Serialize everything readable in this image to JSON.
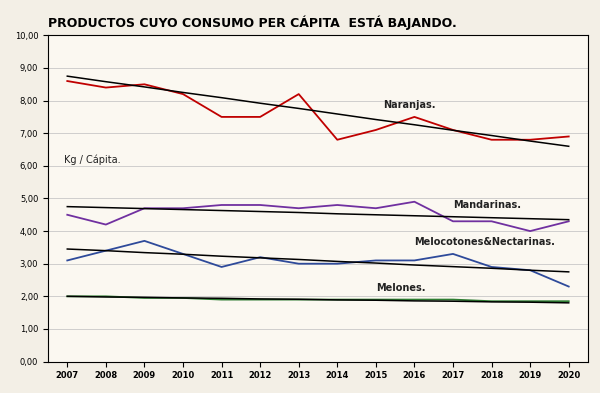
{
  "chart_data": {
    "type": "line",
    "title": "PRODUCTOS CUYO CONSUMO PER CÁPITA  ESTÁ BAJANDO.",
    "y_label": "Kg / Cápita.",
    "categories": [
      "2007",
      "2008",
      "2009",
      "2010",
      "2011",
      "2012",
      "2013",
      "2014",
      "2015",
      "2016",
      "2017",
      "2018",
      "2019",
      "2020"
    ],
    "series": [
      {
        "name": "Naranjas.",
        "color": "#c00000",
        "line_style": "solid",
        "values": [
          8.6,
          8.4,
          8.5,
          8.2,
          7.5,
          7.5,
          8.2,
          6.8,
          7.1,
          7.5,
          7.1,
          6.8,
          6.8,
          6.9
        ]
      },
      {
        "name": "Mandarinas.",
        "color": "#7030a0",
        "line_style": "solid",
        "values": [
          4.5,
          4.2,
          4.7,
          4.7,
          4.8,
          4.8,
          4.7,
          4.8,
          4.7,
          4.9,
          4.3,
          4.3,
          4.0,
          4.3
        ]
      },
      {
        "name": "Melocotones&Nectarinas.",
        "color": "#2e4a9a",
        "line_style": "solid",
        "values": [
          3.1,
          3.4,
          3.7,
          3.3,
          2.9,
          3.2,
          3.0,
          3.0,
          3.1,
          3.1,
          3.3,
          2.9,
          2.8,
          2.3
        ]
      },
      {
        "name": "Melones.",
        "color": "#2e7d32",
        "line_style": "solid",
        "values": [
          2.0,
          2.0,
          1.95,
          1.95,
          1.9,
          1.9,
          1.9,
          1.9,
          1.9,
          1.9,
          1.9,
          1.85,
          1.85,
          1.85
        ]
      },
      {
        "color": "#000000",
        "line_style": "solid",
        "values": [
          8.75,
          8.58,
          8.42,
          8.25,
          8.09,
          7.92,
          7.76,
          7.59,
          7.42,
          7.26,
          7.09,
          6.93,
          6.76,
          6.6
        ]
      },
      {
        "color": "#000000",
        "line_style": "solid",
        "values": [
          4.75,
          4.72,
          4.69,
          4.66,
          4.63,
          4.6,
          4.57,
          4.53,
          4.5,
          4.47,
          4.44,
          4.41,
          4.38,
          4.35
        ]
      },
      {
        "color": "#000000",
        "line_style": "solid",
        "values": [
          3.45,
          3.4,
          3.34,
          3.29,
          3.23,
          3.18,
          3.13,
          3.07,
          3.02,
          2.96,
          2.91,
          2.86,
          2.8,
          2.75
        ]
      },
      {
        "color": "#000000",
        "line_style": "solid",
        "values": [
          2.0,
          1.98,
          1.97,
          1.95,
          1.94,
          1.92,
          1.91,
          1.89,
          1.88,
          1.86,
          1.85,
          1.83,
          1.82,
          1.8
        ]
      }
    ],
    "ylim": [
      0,
      10
    ],
    "yticks": [
      {
        "value": 0,
        "label": "0,00"
      },
      {
        "value": 1,
        "label": "1,00"
      },
      {
        "value": 2,
        "label": "2,00"
      },
      {
        "value": 3,
        "label": "3,00"
      },
      {
        "value": 4,
        "label": "4,00"
      },
      {
        "value": 5,
        "label": "5,00"
      },
      {
        "value": 6,
        "label": "6,00"
      },
      {
        "value": 7,
        "label": "7,00"
      },
      {
        "value": 8,
        "label": "8,00"
      },
      {
        "value": 9,
        "label": "9,00"
      },
      {
        "value": 10,
        "label": "10,00"
      }
    ],
    "grid": true
  }
}
